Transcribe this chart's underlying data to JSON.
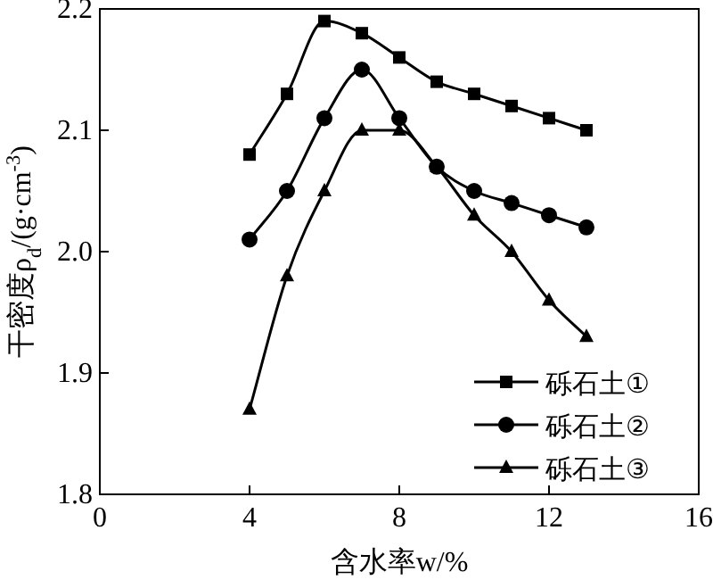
{
  "chart_data": {
    "type": "line",
    "xlabel": "含水率w/%",
    "ylabel": "干密度ρ$_{d}$/(g·cm$^{-3}$)",
    "x": [
      4,
      5,
      6,
      7,
      8,
      9,
      10,
      11,
      12,
      13
    ],
    "series": [
      {
        "name": "砾石土①",
        "color": "#000000",
        "marker": "square",
        "values": [
          2.08,
          2.13,
          2.19,
          2.18,
          2.16,
          2.14,
          2.13,
          2.12,
          2.11,
          2.1
        ]
      },
      {
        "name": "砾石土②",
        "color": "#000000",
        "marker": "circle",
        "values": [
          2.01,
          2.05,
          2.11,
          2.15,
          2.11,
          2.07,
          2.05,
          2.04,
          2.03,
          2.02
        ]
      },
      {
        "name": "砾石土③",
        "color": "#000000",
        "marker": "triangle",
        "values": [
          1.87,
          1.98,
          2.05,
          2.1,
          2.1,
          2.07,
          2.03,
          2.0,
          1.96,
          1.93
        ]
      }
    ],
    "xlim": [
      0,
      16
    ],
    "xticks": [
      0,
      4,
      8,
      12,
      16
    ],
    "ylim": [
      1.8,
      2.2
    ],
    "yticks": [
      {
        "value": 1.8,
        "label": "1.8"
      },
      {
        "value": 1.9,
        "label": "1.9"
      },
      {
        "value": 2.0,
        "label": "2.0"
      },
      {
        "value": 2.1,
        "label": "2.1"
      },
      {
        "value": 2.2,
        "label": "2.2"
      }
    ],
    "legend": "bottom right",
    "grid": false,
    "line_style": "solid"
  }
}
